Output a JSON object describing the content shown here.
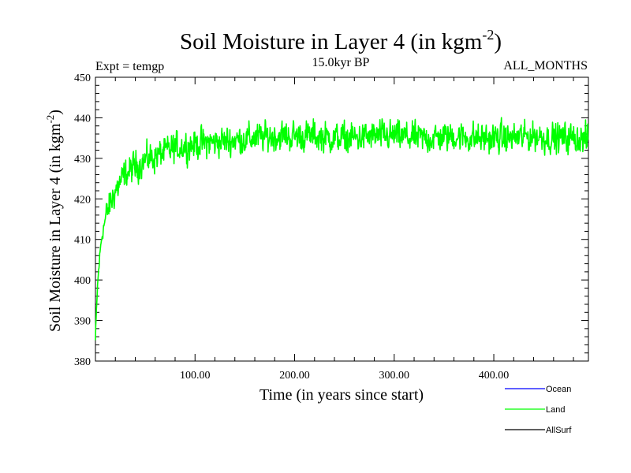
{
  "chart_data": {
    "type": "line",
    "title": "Soil Moisture in Layer 4 (in kgm",
    "title_superscript": "-2",
    "title_suffix": ")",
    "left_caption": "Expt = temgp",
    "center_caption": "15.0kyr BP",
    "right_caption": "ALL_MONTHS",
    "xlabel": "Time (in years since start)",
    "ylabel": "Soil Moisture in Layer 4 (in kgm",
    "ylabel_superscript": "-2",
    "ylabel_suffix": ")",
    "xlim": [
      0,
      495
    ],
    "ylim": [
      380,
      450
    ],
    "x_ticks": [
      100,
      200,
      300,
      400
    ],
    "x_tick_labels": [
      "100.00",
      "200.00",
      "300.00",
      "400.00"
    ],
    "y_ticks": [
      380,
      390,
      400,
      410,
      420,
      430,
      440,
      450
    ],
    "y_tick_labels": [
      "380",
      "390",
      "400",
      "410",
      "420",
      "430",
      "440",
      "450"
    ],
    "colors": {
      "ocean": "#0000ff",
      "land": "#00ff00",
      "allsurf": "#000000"
    },
    "legend": [
      {
        "name": "Ocean",
        "color": "#0000ff"
      },
      {
        "name": "Land",
        "color": "#00ff00"
      },
      {
        "name": "AllSurf",
        "color": "#000000"
      }
    ],
    "series": [
      {
        "name": "Land",
        "color": "#00ff00",
        "x": [
          0,
          2,
          4,
          6,
          8,
          10,
          15,
          20,
          25,
          30,
          35,
          40,
          50,
          60,
          70,
          80,
          90,
          100,
          120,
          140,
          160,
          180,
          200,
          220,
          240,
          260,
          280,
          300,
          320,
          340,
          360,
          380,
          400,
          420,
          440,
          460,
          480,
          495
        ],
        "values": [
          385,
          398,
          405,
          410,
          413,
          415,
          419,
          422,
          424,
          426,
          427,
          428,
          429.5,
          430.5,
          431.5,
          432.5,
          433,
          433.5,
          434,
          434.5,
          435,
          435.5,
          435.5,
          435.5,
          435,
          435,
          435.5,
          435.5,
          435,
          435,
          435.5,
          435,
          435,
          435,
          435.5,
          435,
          435,
          434.5
        ],
        "noise_amplitude": 3.5
      }
    ]
  }
}
